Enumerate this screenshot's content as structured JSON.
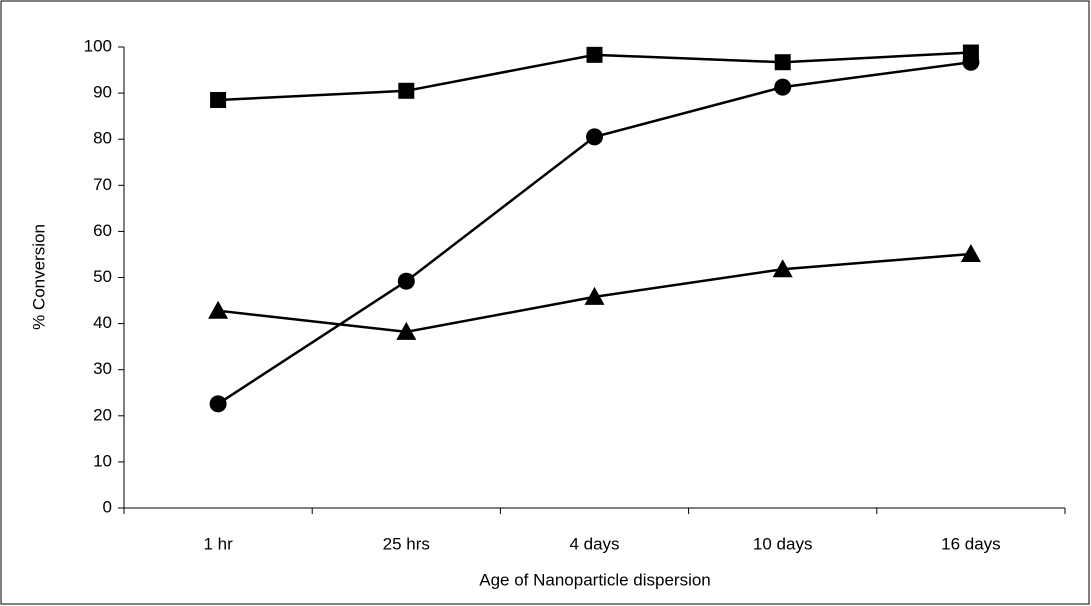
{
  "chart_data": {
    "type": "line",
    "x_label": "Age of Nanoparticle dispersion",
    "y_label": "% Conversion",
    "categories": [
      "1 hr",
      "25 hrs",
      "4 days",
      "10 days",
      "16 days"
    ],
    "series": [
      {
        "color": "#000000",
        "marker": "square",
        "values": [
          88.5,
          90.5,
          98.3,
          96.7,
          98.8
        ]
      },
      {
        "color": "#000000",
        "marker": "circle",
        "values": [
          22.6,
          49.2,
          80.5,
          91.3,
          96.7
        ]
      },
      {
        "color": "#000000",
        "marker": "triangle",
        "values": [
          42.8,
          38.2,
          45.8,
          51.8,
          55.1
        ]
      }
    ],
    "ylim": [
      0,
      100
    ],
    "yticks": [
      0,
      10,
      20,
      30,
      40,
      50,
      60,
      70,
      80,
      90,
      100
    ],
    "grid": false
  }
}
